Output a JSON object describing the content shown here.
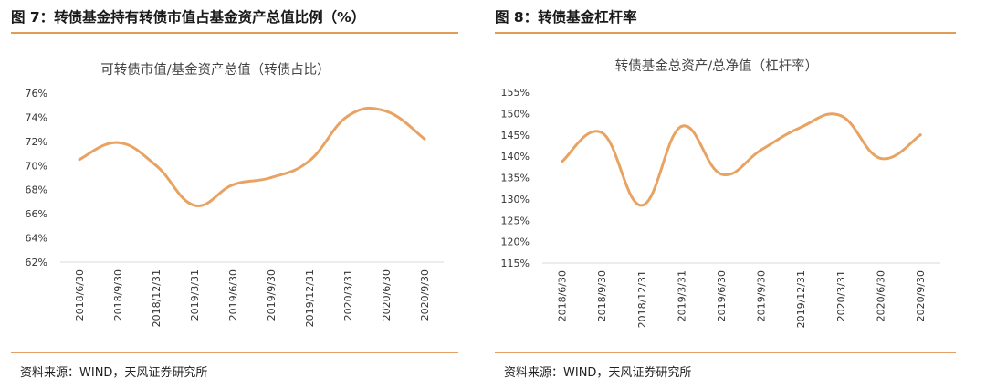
{
  "figures": [
    {
      "title": "图 7：转债基金持有转债市值占基金资产总值比例（%）",
      "source": "资料来源：WIND，天风证券研究所"
    },
    {
      "title": "图 8：转债基金杠杆率",
      "source": "资料来源：WIND，天风证券研究所"
    }
  ],
  "colors": {
    "line": "#e8a363",
    "rule": "#e29d54",
    "axis": "#d9d9d9",
    "text": "#333333"
  },
  "chart_data": [
    {
      "type": "line",
      "title": "可转债市值/基金资产总值（转债占比）",
      "xlabel": "",
      "ylabel": "",
      "categories": [
        "2018/6/30",
        "2018/9/30",
        "2018/12/31",
        "2019/3/31",
        "2019/6/30",
        "2019/9/30",
        "2019/12/31",
        "2020/3/31",
        "2020/6/30",
        "2020/9/30"
      ],
      "values": [
        70.5,
        71.9,
        70.0,
        66.7,
        68.4,
        69.0,
        70.4,
        74.1,
        74.5,
        72.2
      ],
      "ylim": [
        62,
        76
      ],
      "yticks": [
        62,
        64,
        66,
        68,
        70,
        72,
        74,
        76
      ],
      "ytick_suffix": "%",
      "grid": false,
      "legend": "none"
    },
    {
      "type": "line",
      "title": "转债基金总资产/总净值（杠杆率）",
      "xlabel": "",
      "ylabel": "",
      "categories": [
        "2018/6/30",
        "2018/9/30",
        "2018/12/31",
        "2019/3/31",
        "2019/6/30",
        "2019/9/30",
        "2019/12/31",
        "2020/3/31",
        "2020/6/30",
        "2020/9/30"
      ],
      "values": [
        138.8,
        145.5,
        128.5,
        147.0,
        135.8,
        141.5,
        146.8,
        149.5,
        139.5,
        145.0
      ],
      "ylim": [
        115,
        155
      ],
      "yticks": [
        115,
        120,
        125,
        130,
        135,
        140,
        145,
        150,
        155
      ],
      "ytick_suffix": "%",
      "grid": false,
      "legend": "none"
    }
  ]
}
